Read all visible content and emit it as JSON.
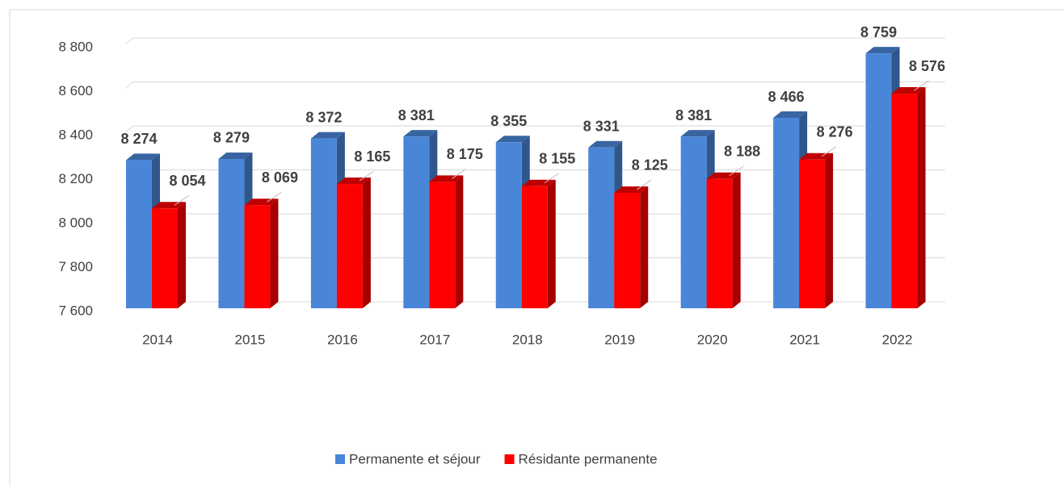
{
  "chart_data": {
    "type": "bar3d",
    "categories": [
      "2014",
      "2015",
      "2016",
      "2017",
      "2018",
      "2019",
      "2020",
      "2021",
      "2022"
    ],
    "series": [
      {
        "name": "Permanente et séjour",
        "color": "#4a86d8",
        "values": [
          8274,
          8279,
          8372,
          8381,
          8355,
          8331,
          8381,
          8466,
          8759
        ],
        "value_labels": [
          "8 274",
          "8 279",
          "8 372",
          "8 381",
          "8 355",
          "8 331",
          "8 381",
          "8 466",
          "8 759"
        ]
      },
      {
        "name": "Résidante permanente",
        "color": "#ff0000",
        "values": [
          8054,
          8069,
          8165,
          8175,
          8155,
          8125,
          8188,
          8276,
          8576
        ],
        "value_labels": [
          "8 054",
          "8 069",
          "8 165",
          "8 175",
          "8 155",
          "8 125",
          "8 188",
          "8 276",
          "8 576"
        ]
      }
    ],
    "ylim": [
      7600,
      8800
    ],
    "yticks": [
      {
        "value": 7600,
        "label": "7 600"
      },
      {
        "value": 7800,
        "label": "7 800"
      },
      {
        "value": 8000,
        "label": "8 000"
      },
      {
        "value": 8200,
        "label": "8 200"
      },
      {
        "value": 8400,
        "label": "8 400"
      },
      {
        "value": 8600,
        "label": "8 600"
      },
      {
        "value": 8800,
        "label": "8 800"
      }
    ],
    "grid": true,
    "legend": "bottom"
  }
}
